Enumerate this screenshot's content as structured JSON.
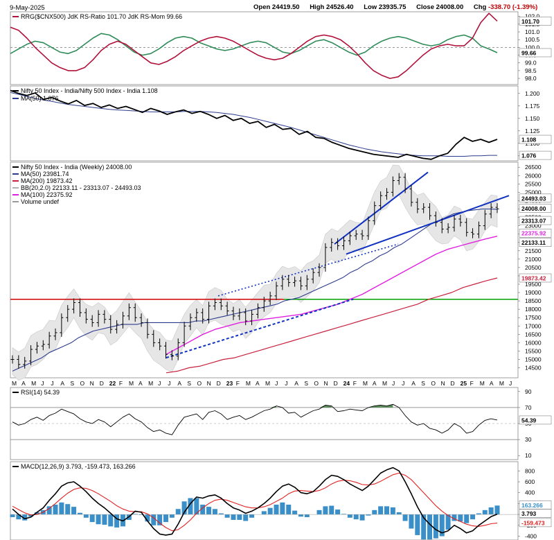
{
  "header": {
    "date": "9-May-2025",
    "open_label": "Open",
    "open": "24419.50",
    "high_label": "High",
    "high": "24526.40",
    "low_label": "Low",
    "low": "23935.75",
    "close_label": "Close",
    "close": "24008.00",
    "chg_label": "Chg",
    "chg": "-338.70 (-1.39%)"
  },
  "colors": {
    "rs_ratio": "#b0103a",
    "rs_mom": "#2e8b57",
    "price": "#000000",
    "ma50": "#2a3a8c",
    "ma200": "#c8203c",
    "ma100": "#e020e0",
    "bb_fill": "#e6e6e6",
    "trend": "#1030c0",
    "red_line": "#d00000",
    "green_line": "#00a000",
    "macd_signal": "#e02020",
    "hist": "#3a8fc8"
  },
  "chart_data": [
    {
      "type": "line",
      "panel": "rrg",
      "legend": "RRG($CNX500) JdK RS-Ratio 101.70 JdK RS-Mom 99.66",
      "ylim": [
        97.6,
        102.3
      ],
      "ticks": [
        "102.0",
        "101.5",
        "101.0",
        "100.5",
        "100.0",
        "99.5",
        "99.0",
        "98.5",
        "98.0"
      ],
      "reference_line": 100.0,
      "badges": [
        "101.70",
        "99.66"
      ],
      "series": [
        {
          "name": "JdK RS-Ratio",
          "values": [
            101.3,
            101.1,
            100.6,
            100.0,
            99.5,
            99.0,
            98.7,
            98.5,
            98.5,
            98.7,
            99.2,
            99.8,
            100.2,
            100.4,
            100.2,
            99.8,
            99.4,
            99.0,
            98.9,
            99.1,
            99.4,
            99.8,
            100.1,
            100.4,
            100.6,
            100.7,
            100.6,
            100.4,
            100.1,
            99.8,
            99.5,
            99.3,
            99.2,
            99.3,
            99.6,
            100.0,
            100.4,
            100.7,
            100.8,
            100.7,
            100.5,
            100.1,
            99.6,
            99.0,
            98.5,
            98.2,
            98.0,
            98.1,
            98.5,
            99.0,
            99.5,
            99.9,
            100.1,
            100.2,
            100.1,
            100.1,
            100.6,
            101.6,
            102.2,
            101.7
          ]
        },
        {
          "name": "JdK RS-Mom",
          "values": [
            99.6,
            99.9,
            100.2,
            100.4,
            100.3,
            100.0,
            99.7,
            99.6,
            99.8,
            100.2,
            100.6,
            100.9,
            100.8,
            100.5,
            100.1,
            99.7,
            99.5,
            99.6,
            99.9,
            100.3,
            100.6,
            100.7,
            100.6,
            100.3,
            100.1,
            99.9,
            99.8,
            99.9,
            100.1,
            100.3,
            100.4,
            100.3,
            100.0,
            99.7,
            99.6,
            99.8,
            100.1,
            100.4,
            100.5,
            100.3,
            100.0,
            99.7,
            99.5,
            99.7,
            100.1,
            100.4,
            100.6,
            100.7,
            100.6,
            100.4,
            100.2,
            100.1,
            100.2,
            100.5,
            100.7,
            100.8,
            100.6,
            100.1,
            99.9,
            99.66
          ]
        }
      ]
    },
    {
      "type": "line",
      "panel": "ratio",
      "legend_title": "Nifty 50 Index - India/Nifty 500 Index - India 1.108",
      "legend_ma": "MA(50) 1.076",
      "ylim": [
        1.065,
        1.215
      ],
      "ticks": [
        "1.200",
        "1.175",
        "1.150",
        "1.125",
        "1.100",
        "1.075"
      ],
      "badges": [
        "1.108",
        "1.076"
      ],
      "series": [
        {
          "name": "Ratio",
          "values": [
            1.206,
            1.2,
            1.196,
            1.201,
            1.188,
            1.192,
            1.185,
            1.179,
            1.186,
            1.176,
            1.18,
            1.172,
            1.177,
            1.17,
            1.174,
            1.168,
            1.162,
            1.17,
            1.165,
            1.158,
            1.163,
            1.167,
            1.16,
            1.164,
            1.158,
            1.15,
            1.156,
            1.146,
            1.15,
            1.14,
            1.144,
            1.132,
            1.138,
            1.128,
            1.13,
            1.118,
            1.124,
            1.112,
            1.11,
            1.102,
            1.096,
            1.09,
            1.086,
            1.082,
            1.078,
            1.076,
            1.074,
            1.072,
            1.078,
            1.074,
            1.07,
            1.068,
            1.075,
            1.08,
            1.098,
            1.112,
            1.104,
            1.108,
            1.102,
            1.108
          ]
        },
        {
          "name": "MA(50)",
          "values": [
            1.202,
            1.198,
            1.194,
            1.19,
            1.187,
            1.184,
            1.181,
            1.178,
            1.176,
            1.174,
            1.172,
            1.17,
            1.168,
            1.167,
            1.166,
            1.165,
            1.164,
            1.163,
            1.163,
            1.163,
            1.163,
            1.164,
            1.164,
            1.164,
            1.163,
            1.162,
            1.16,
            1.158,
            1.155,
            1.152,
            1.148,
            1.144,
            1.14,
            1.136,
            1.132,
            1.127,
            1.122,
            1.117,
            1.112,
            1.107,
            1.102,
            1.097,
            1.093,
            1.089,
            1.086,
            1.083,
            1.081,
            1.079,
            1.077,
            1.076,
            1.075,
            1.075,
            1.075,
            1.074,
            1.074,
            1.074,
            1.075,
            1.075,
            1.076,
            1.076
          ]
        }
      ]
    },
    {
      "type": "candlestick",
      "panel": "price",
      "legend_title": "Nifty 50 Index - India (Weekly) 24008.00",
      "legend_ma50": "MA(50) 23981.74",
      "legend_ma200": "MA(200) 19873.42",
      "legend_bb": "BB(20,2.0) 22133.11 - 23313.07 - 24493.03",
      "legend_ma100": "MA(100) 22375.92",
      "legend_vol": "Volume undef",
      "ylim": [
        13900,
        26800
      ],
      "ticks": [
        "26500",
        "26000",
        "25500",
        "25000",
        "24500",
        "24000",
        "23500",
        "23000",
        "22500",
        "22000",
        "21500",
        "21000",
        "20500",
        "20000",
        "19500",
        "19000",
        "18500",
        "18000",
        "17500",
        "17000",
        "16500",
        "16000",
        "15500",
        "15000",
        "14500"
      ],
      "badges": [
        "24493.03",
        "24008.00",
        "23313.07",
        "22375.92",
        "22133.11",
        "19873.42"
      ],
      "horizontal_lines": [
        18600,
        18600
      ],
      "x_labels": [
        "M",
        "A",
        "M",
        "J",
        "J",
        "A",
        "S",
        "O",
        "N",
        "D",
        "22",
        "F",
        "M",
        "A",
        "M",
        "J",
        "J",
        "A",
        "S",
        "O",
        "N",
        "D",
        "23",
        "F",
        "M",
        "A",
        "M",
        "J",
        "J",
        "A",
        "S",
        "O",
        "N",
        "D",
        "24",
        "F",
        "M",
        "A",
        "M",
        "J",
        "J",
        "A",
        "S",
        "O",
        "N",
        "D",
        "25",
        "F",
        "M",
        "A",
        "M",
        "J"
      ],
      "close": [
        15000,
        14700,
        14900,
        15600,
        15800,
        15900,
        16400,
        16600,
        17500,
        18000,
        18400,
        17800,
        17400,
        17200,
        17700,
        17400,
        16800,
        17100,
        17600,
        18100,
        17500,
        17200,
        16500,
        16000,
        15800,
        15300,
        15200,
        16000,
        17000,
        17500,
        17800,
        17400,
        18200,
        18400,
        18200,
        17900,
        17600,
        17800,
        17300,
        17700,
        18100,
        18500,
        18800,
        19400,
        19800,
        19600,
        19700,
        19400,
        19800,
        20200,
        20500,
        21700,
        22000,
        21800,
        22100,
        22400,
        22500,
        22400,
        23300,
        24200,
        24800,
        25000,
        25700,
        25900,
        25200,
        24400,
        24000,
        24100,
        23600,
        23200,
        22800,
        22900,
        23400,
        23200,
        22600,
        22500,
        23000,
        23700,
        24100,
        24008
      ],
      "ma50": [
        14300,
        14500,
        14700,
        14900,
        15100,
        15400,
        15600,
        15800,
        16000,
        16300,
        16500,
        16700,
        16800,
        16900,
        17000,
        17100,
        17100,
        17100,
        17200,
        17200,
        17200,
        17200,
        17200,
        17200,
        17200,
        17300,
        17300,
        17400,
        17500,
        17600,
        17700,
        17800,
        17900,
        18000,
        18100,
        18200,
        18300,
        18500,
        18600,
        18700,
        18900,
        19100,
        19300,
        19500,
        19700,
        19900,
        20200,
        20400,
        20700,
        20900,
        21200,
        21400,
        21700,
        21900,
        22200,
        22500,
        22800,
        23100,
        23300,
        23500,
        23700,
        23800,
        23900,
        23950,
        24000,
        24000,
        23981.74
      ],
      "ma200": [
        14200,
        14300,
        14500,
        14600,
        14800,
        15000,
        15100,
        15300,
        15500,
        15700,
        15900,
        16100,
        16300,
        16500,
        16700,
        16900,
        17100,
        17300,
        17500,
        17700,
        17900,
        18100,
        18300,
        18600,
        18800,
        19000,
        19300,
        19500,
        19700,
        19873.42
      ],
      "ma100": [
        15300,
        15700,
        16100,
        16500,
        16800,
        17000,
        17200,
        17300,
        17400,
        17500,
        17600,
        17700,
        17900,
        18100,
        18300,
        18600,
        18900,
        19300,
        19700,
        20100,
        20500,
        20900,
        21300,
        21600,
        21800,
        22000,
        22200,
        22375.92
      ]
    },
    {
      "type": "line",
      "panel": "rsi",
      "legend": "RSI(14) 54.39",
      "ylim": [
        5,
        95
      ],
      "ticks": [
        "90",
        "70",
        "50",
        "30",
        "10"
      ],
      "overbought": 70,
      "oversold": 30,
      "badges": [
        "54.39"
      ],
      "values": [
        52,
        48,
        50,
        55,
        58,
        54,
        60,
        63,
        68,
        65,
        62,
        56,
        52,
        50,
        55,
        52,
        46,
        52,
        58,
        62,
        56,
        52,
        45,
        40,
        42,
        38,
        36,
        48,
        58,
        60,
        62,
        55,
        64,
        66,
        62,
        55,
        58,
        60,
        55,
        58,
        62,
        66,
        68,
        72,
        70,
        63,
        64,
        58,
        62,
        66,
        68,
        73,
        72,
        65,
        66,
        68,
        67,
        66,
        70,
        72,
        73,
        72,
        74,
        70,
        60,
        52,
        48,
        50,
        44,
        42,
        38,
        42,
        50,
        46,
        38,
        40,
        48,
        54,
        56,
        54.39
      ]
    },
    {
      "type": "line",
      "panel": "macd",
      "legend": "MACD(12,26,9) 3.793, -159.473, 163.266",
      "ylim": [
        -470,
        970
      ],
      "ticks": [
        "800",
        "600",
        "400",
        "200",
        "0",
        "-200",
        "-400"
      ],
      "badges": [
        "163.266",
        "3.793",
        "-159.473"
      ],
      "series": [
        {
          "name": "MACD",
          "values": [
            100,
            0,
            -80,
            -50,
            40,
            120,
            260,
            380,
            520,
            580,
            600,
            520,
            420,
            300,
            200,
            120,
            20,
            -80,
            -120,
            -40,
            60,
            40,
            -120,
            -260,
            -360,
            -380,
            -360,
            -180,
            40,
            200,
            320,
            300,
            340,
            360,
            300,
            200,
            120,
            80,
            20,
            60,
            120,
            200,
            300,
            420,
            520,
            560,
            500,
            400,
            380,
            420,
            520,
            640,
            720,
            700,
            640,
            560,
            500,
            440,
            520,
            640,
            760,
            820,
            860,
            800,
            600,
            380,
            140,
            -60,
            -180,
            -280,
            -340,
            -300,
            -200,
            -260,
            -340,
            -300,
            -200,
            -120,
            -40,
            3.793
          ]
        },
        {
          "name": "Signal",
          "values": [
            150,
            90,
            30,
            -10,
            0,
            40,
            110,
            200,
            300,
            390,
            460,
            490,
            480,
            440,
            380,
            310,
            240,
            160,
            100,
            60,
            50,
            50,
            10,
            -60,
            -160,
            -240,
            -300,
            -280,
            -200,
            -100,
            20,
            120,
            200,
            260,
            280,
            260,
            220,
            180,
            140,
            120,
            120,
            140,
            180,
            240,
            300,
            380,
            430,
            440,
            430,
            420,
            440,
            490,
            560,
            610,
            630,
            620,
            590,
            550,
            540,
            560,
            610,
            670,
            730,
            760,
            720,
            640,
            520,
            400,
            280,
            160,
            60,
            -20,
            -80,
            -130,
            -180,
            -210,
            -220,
            -200,
            -170,
            -159.473
          ]
        }
      ],
      "histogram": [
        -50,
        -90,
        -110,
        -40,
        40,
        80,
        150,
        180,
        220,
        190,
        140,
        30,
        -60,
        -140,
        -180,
        -190,
        -220,
        -240,
        -220,
        -100,
        10,
        -10,
        -130,
        -200,
        -200,
        -140,
        -60,
        100,
        240,
        300,
        300,
        180,
        140,
        100,
        20,
        -60,
        -100,
        -100,
        -120,
        -60,
        0,
        60,
        120,
        180,
        220,
        180,
        70,
        -40,
        -50,
        0,
        80,
        150,
        160,
        90,
        10,
        -60,
        -90,
        -110,
        -20,
        80,
        150,
        150,
        130,
        40,
        -120,
        -260,
        -380,
        -460,
        -460,
        -440,
        -400,
        -280,
        -120,
        -130,
        -160,
        -90,
        20,
        80,
        130,
        163.266
      ]
    }
  ]
}
